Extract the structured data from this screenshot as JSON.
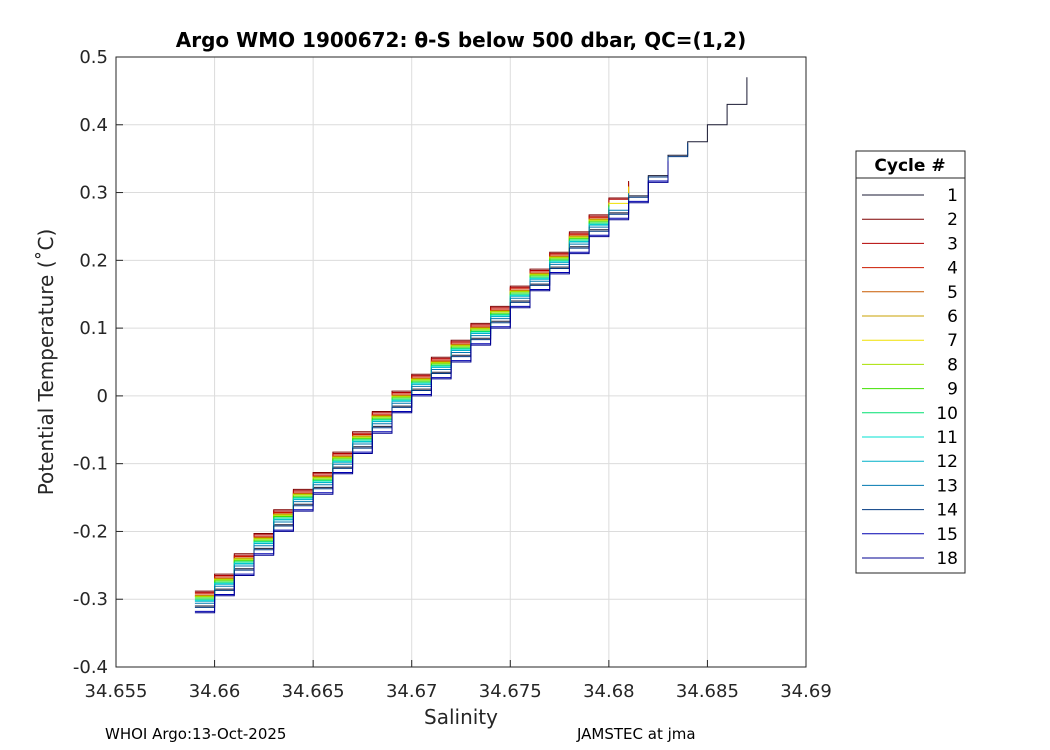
{
  "chart_data": {
    "type": "line",
    "title": "Argo WMO 1900672: θ-S below 500 dbar,  QC=(1,2)",
    "xlabel": "Salinity",
    "ylabel": "Potential Temperature (˚C)",
    "xlim": [
      34.655,
      34.69
    ],
    "ylim": [
      -0.4,
      0.5
    ],
    "xticks": [
      "34.655",
      "34.66",
      "34.665",
      "34.67",
      "34.675",
      "34.68",
      "34.685",
      "34.69"
    ],
    "yticks": [
      "-0.4",
      "-0.3",
      "-0.2",
      "-0.1",
      "0",
      "0.1",
      "0.2",
      "0.3",
      "0.4",
      "0.5"
    ],
    "grid": true,
    "legend": {
      "title": "Cycle #",
      "placement": "outside-right",
      "entries": [
        "1",
        "2",
        "3",
        "4",
        "5",
        "6",
        "7",
        "8",
        "9",
        "10",
        "11",
        "12",
        "13",
        "14",
        "15",
        "18"
      ]
    },
    "series_colors": [
      "#1a1a33",
      "#7f0000",
      "#b20000",
      "#cc1a00",
      "#c85a00",
      "#c8a000",
      "#f0e000",
      "#a8e000",
      "#40e000",
      "#00e070",
      "#00e0d0",
      "#00b0c8",
      "#0078b0",
      "#003880",
      "#0000b0",
      "#000090"
    ],
    "x_base": [
      34.659,
      34.66,
      34.661,
      34.662,
      34.663,
      34.664,
      34.665,
      34.666,
      34.667,
      34.668,
      34.669,
      34.67,
      34.671,
      34.672,
      34.673,
      34.674,
      34.675,
      34.676,
      34.677,
      34.678,
      34.679,
      34.68,
      34.681,
      34.682,
      34.683,
      34.684,
      34.685,
      34.686,
      34.687
    ],
    "y_base": [
      -0.3,
      -0.275,
      -0.245,
      -0.215,
      -0.18,
      -0.15,
      -0.125,
      -0.095,
      -0.065,
      -0.035,
      -0.005,
      0.02,
      0.045,
      0.07,
      0.095,
      0.12,
      0.15,
      0.175,
      0.2,
      0.23,
      0.255,
      0.28,
      0.305,
      0.335,
      0.365,
      0.385,
      0.41,
      0.44,
      0.48
    ],
    "series_extent": [
      [
        0,
        28
      ],
      [
        0,
        22
      ],
      [
        0,
        22
      ],
      [
        0,
        21
      ],
      [
        0,
        21
      ],
      [
        0,
        21
      ],
      [
        0,
        22
      ],
      [
        0,
        21
      ],
      [
        0,
        21
      ],
      [
        0,
        21
      ],
      [
        0,
        21
      ],
      [
        0,
        21
      ],
      [
        0,
        22
      ],
      [
        0,
        25
      ],
      [
        0,
        24
      ],
      [
        0,
        24
      ]
    ],
    "series_offsets": [
      -0.01,
      0.012,
      0.01,
      0.008,
      0.006,
      0.005,
      0.004,
      0.004,
      0.002,
      0.0,
      -0.002,
      -0.003,
      -0.006,
      -0.012,
      -0.018,
      -0.02
    ]
  },
  "footer": {
    "left": "WHOI Argo:13-Oct-2025",
    "right": "JAMSTEC at jma"
  }
}
